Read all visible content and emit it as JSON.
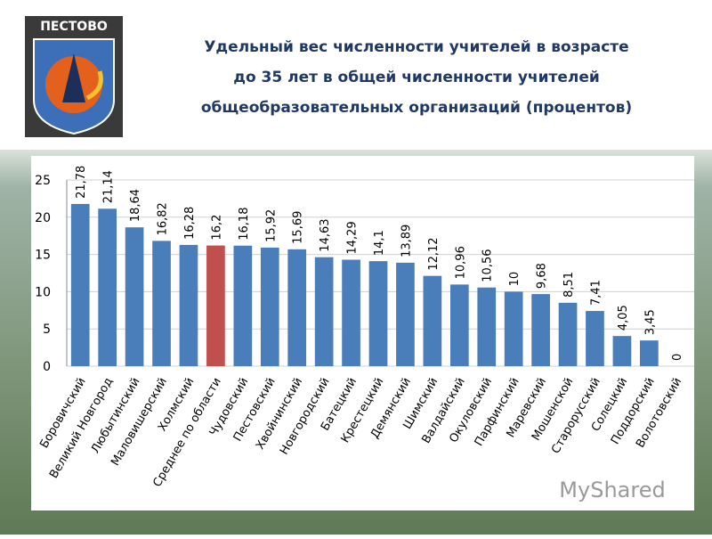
{
  "slide": {
    "logo_text": "ПЕСТОВО",
    "watermark": "MyShared"
  },
  "chart_data": {
    "type": "bar",
    "title": [
      "Удельный вес численности учителей в возрасте",
      "до 35 лет в общей численности учителей",
      "общеобразовательных организаций (процентов)"
    ],
    "categories": [
      "Боровичский",
      "Великий Новгород",
      "Любытинский",
      "Маловишерский",
      "Холмский",
      "Среднее по области",
      "Чудовский",
      "Пестовский",
      "Хвойнинский",
      "Новгородский",
      "Батецкий",
      "Крестецкий",
      "Демянский",
      "Шимский",
      "Валдайский",
      "Окуловский",
      "Парфинский",
      "Маревский",
      "Мошенской",
      "Старорусский",
      "Солецкий",
      "Поддорский",
      "Волотовский"
    ],
    "values": [
      21.78,
      21.14,
      18.64,
      16.82,
      16.28,
      16.2,
      16.18,
      15.92,
      15.69,
      14.63,
      14.29,
      14.1,
      13.89,
      12.12,
      10.96,
      10.56,
      10,
      9.68,
      8.51,
      7.41,
      4.05,
      3.45,
      0
    ],
    "value_labels": [
      "21,78",
      "21,14",
      "18,64",
      "16,82",
      "16,28",
      "16,2",
      "16,18",
      "15,92",
      "15,69",
      "14,63",
      "14,29",
      "14,1",
      "13,89",
      "12,12",
      "10,96",
      "10,56",
      "10",
      "9,68",
      "8,51",
      "7,41",
      "4,05",
      "3,45",
      "0"
    ],
    "colors": [
      "#4a7ebb",
      "#4a7ebb",
      "#4a7ebb",
      "#4a7ebb",
      "#4a7ebb",
      "#c0504d",
      "#4a7ebb",
      "#4a7ebb",
      "#4a7ebb",
      "#4a7ebb",
      "#4a7ebb",
      "#4a7ebb",
      "#4a7ebb",
      "#4a7ebb",
      "#4a7ebb",
      "#4a7ebb",
      "#4a7ebb",
      "#4a7ebb",
      "#4a7ebb",
      "#4a7ebb",
      "#4a7ebb",
      "#4a7ebb",
      "#4a7ebb"
    ],
    "ylim": [
      0,
      25
    ],
    "yticks": [
      0,
      5,
      10,
      15,
      20,
      25
    ],
    "grid": true
  }
}
